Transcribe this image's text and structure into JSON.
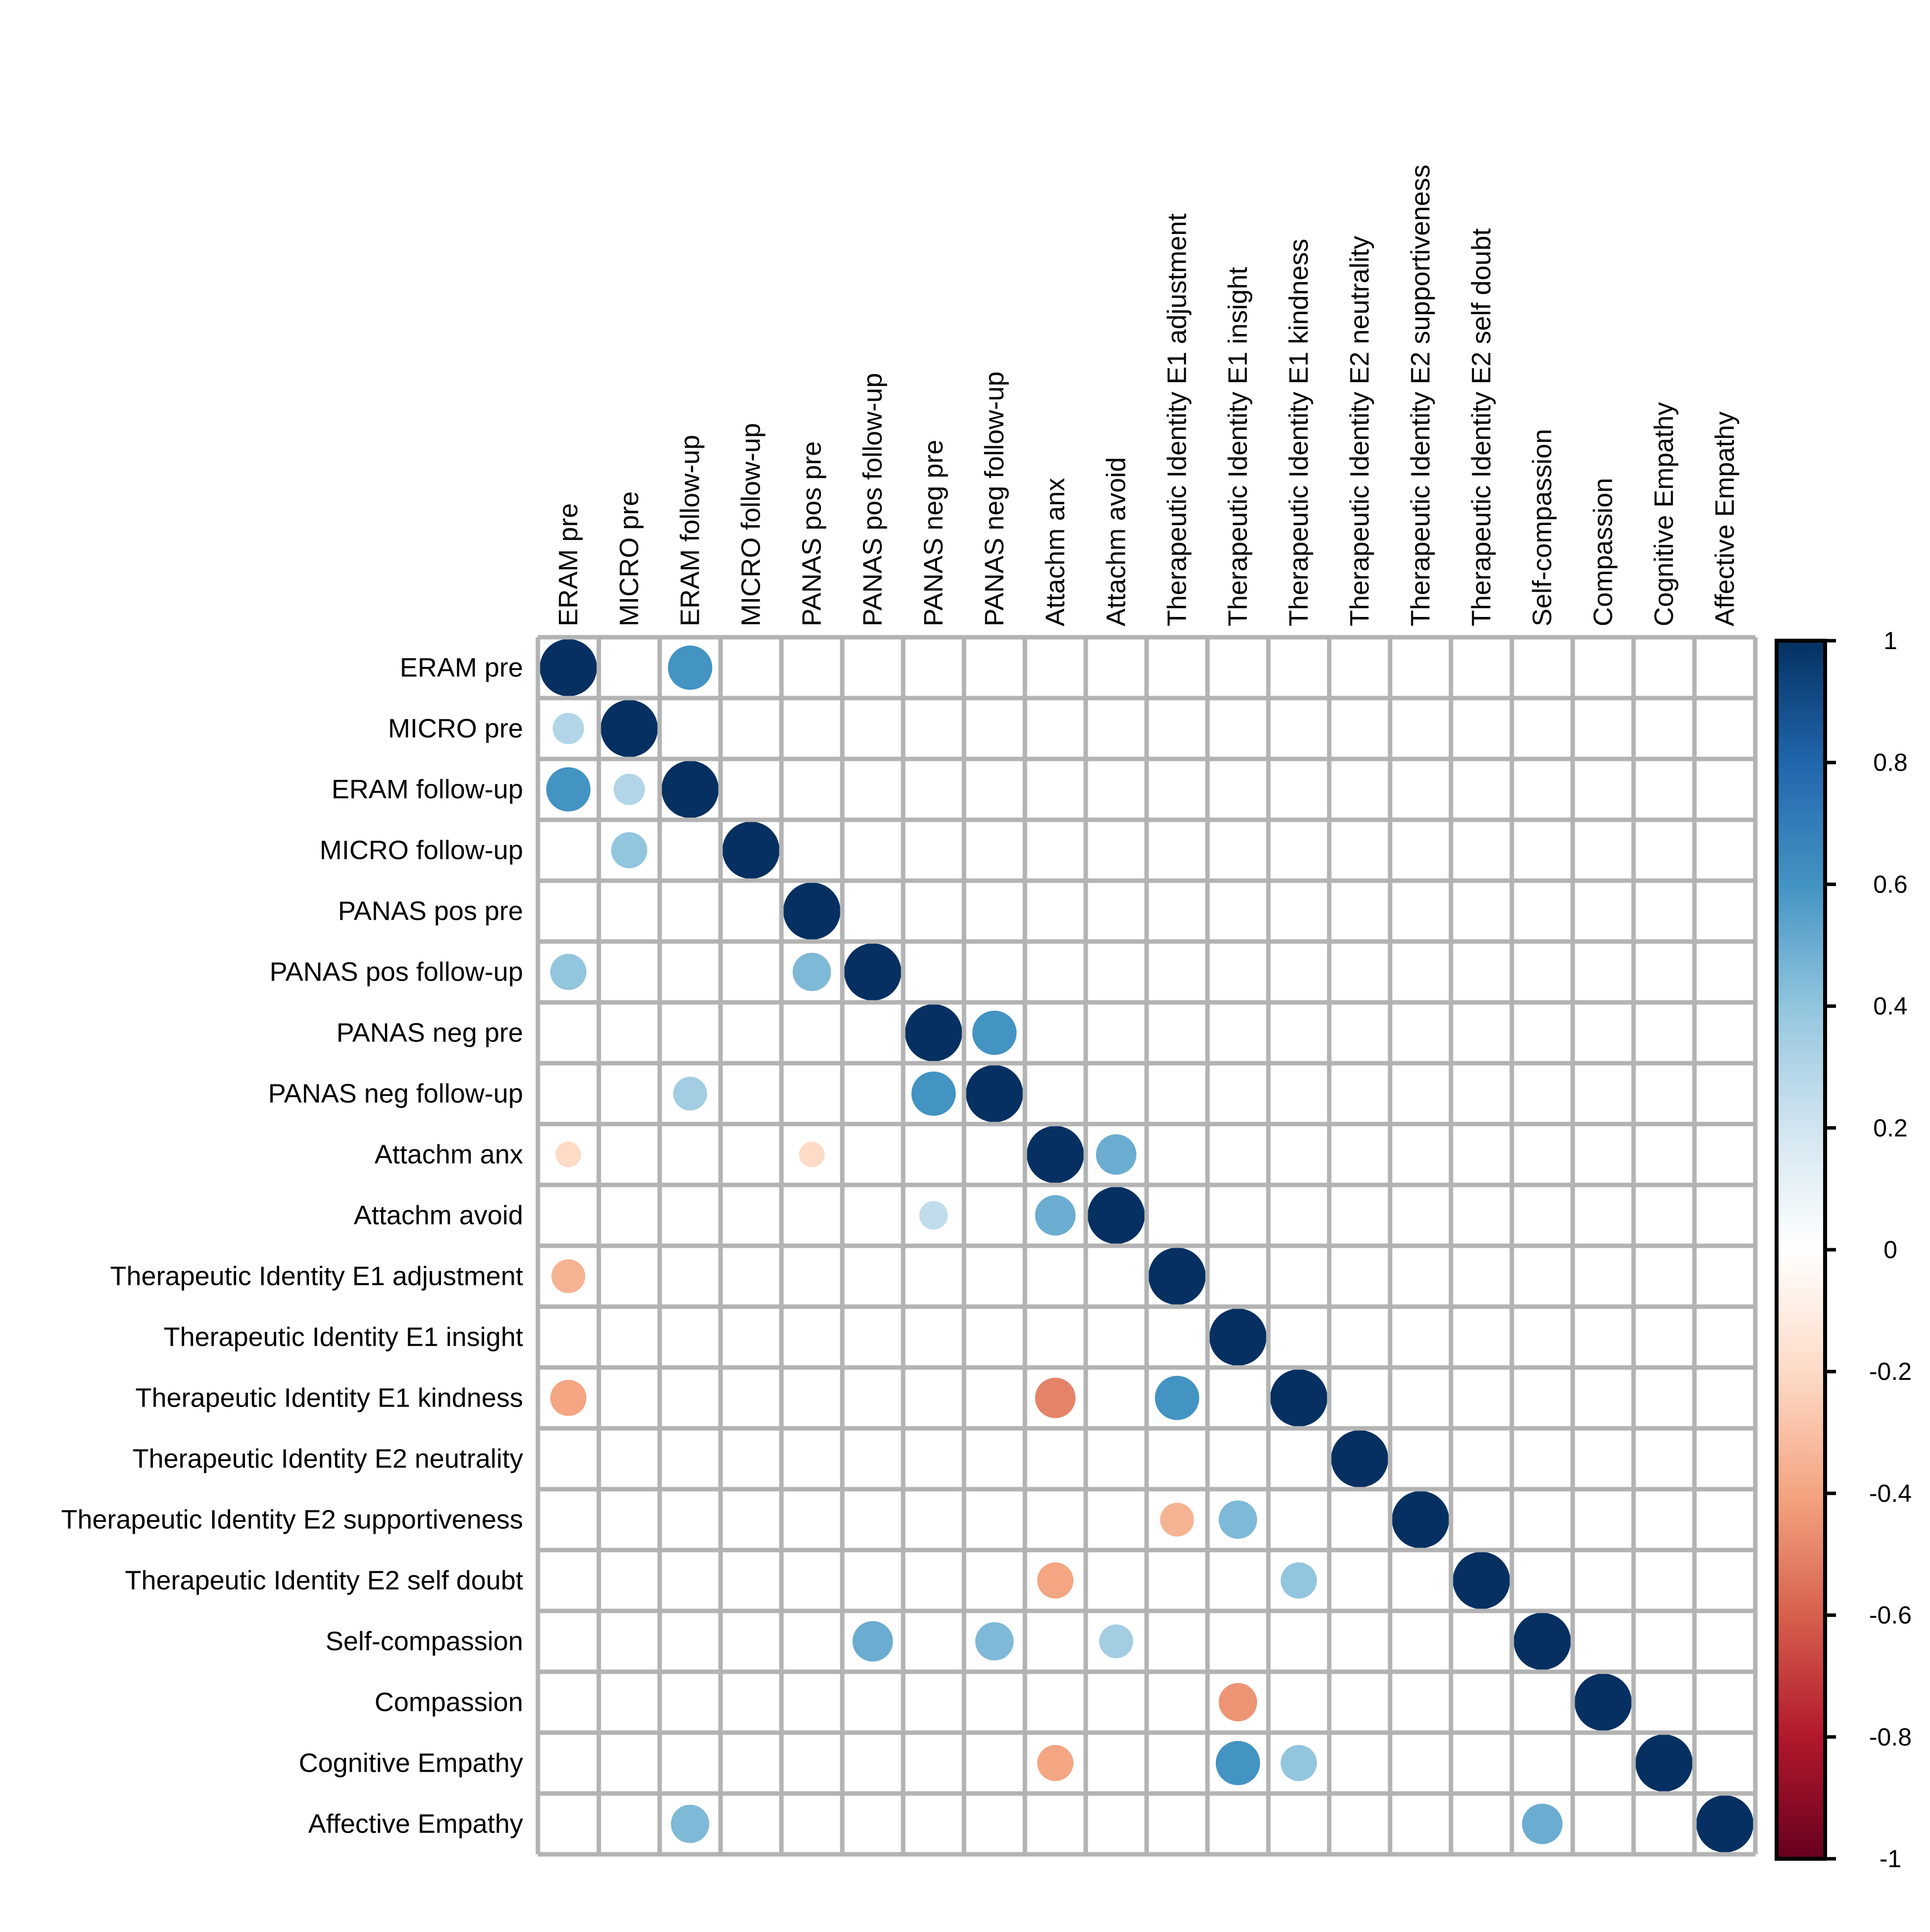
{
  "chart_data": {
    "type": "heatmap",
    "style": "corrplot-circle",
    "title": "",
    "variables": [
      "ERAM pre",
      "MICRO pre",
      "ERAM follow-up",
      "MICRO follow-up",
      "PANAS pos pre",
      "PANAS pos follow-up",
      "PANAS neg pre",
      "PANAS neg follow-up",
      "Attachm anx",
      "Attachm avoid",
      "Therapeutic Identity E1 adjustment",
      "Therapeutic Identity E1 insight",
      "Therapeutic Identity E1 kindness",
      "Therapeutic Identity E2 neutrality",
      "Therapeutic Identity E2 supportiveness",
      "Therapeutic Identity E2 self doubt",
      "Self-compassion",
      "Compassion",
      "Cognitive Empathy",
      "Affective Empathy"
    ],
    "correlations": [
      {
        "row": 0,
        "col": 0,
        "r": 1.0
      },
      {
        "row": 0,
        "col": 2,
        "r": 0.6
      },
      {
        "row": 1,
        "col": 0,
        "r": 0.3
      },
      {
        "row": 1,
        "col": 1,
        "r": 1.0
      },
      {
        "row": 2,
        "col": 0,
        "r": 0.6
      },
      {
        "row": 2,
        "col": 1,
        "r": 0.3
      },
      {
        "row": 2,
        "col": 2,
        "r": 1.0
      },
      {
        "row": 3,
        "col": 1,
        "r": 0.4
      },
      {
        "row": 3,
        "col": 3,
        "r": 1.0
      },
      {
        "row": 4,
        "col": 4,
        "r": 1.0
      },
      {
        "row": 5,
        "col": 0,
        "r": 0.4
      },
      {
        "row": 5,
        "col": 4,
        "r": 0.45
      },
      {
        "row": 5,
        "col": 5,
        "r": 1.0
      },
      {
        "row": 6,
        "col": 6,
        "r": 1.0
      },
      {
        "row": 6,
        "col": 7,
        "r": 0.6
      },
      {
        "row": 7,
        "col": 2,
        "r": 0.35
      },
      {
        "row": 7,
        "col": 6,
        "r": 0.6
      },
      {
        "row": 7,
        "col": 7,
        "r": 1.0
      },
      {
        "row": 8,
        "col": 0,
        "r": -0.2
      },
      {
        "row": 8,
        "col": 4,
        "r": -0.2
      },
      {
        "row": 8,
        "col": 8,
        "r": 1.0
      },
      {
        "row": 8,
        "col": 9,
        "r": 0.5
      },
      {
        "row": 9,
        "col": 6,
        "r": 0.25
      },
      {
        "row": 9,
        "col": 8,
        "r": 0.5
      },
      {
        "row": 9,
        "col": 9,
        "r": 1.0
      },
      {
        "row": 10,
        "col": 0,
        "r": -0.35
      },
      {
        "row": 10,
        "col": 10,
        "r": 1.0
      },
      {
        "row": 11,
        "col": 11,
        "r": 1.0
      },
      {
        "row": 12,
        "col": 0,
        "r": -0.4
      },
      {
        "row": 12,
        "col": 8,
        "r": -0.5
      },
      {
        "row": 12,
        "col": 10,
        "r": 0.6
      },
      {
        "row": 12,
        "col": 12,
        "r": 1.0
      },
      {
        "row": 13,
        "col": 13,
        "r": 1.0
      },
      {
        "row": 14,
        "col": 10,
        "r": -0.35
      },
      {
        "row": 14,
        "col": 11,
        "r": 0.45
      },
      {
        "row": 14,
        "col": 14,
        "r": 1.0
      },
      {
        "row": 15,
        "col": 8,
        "r": -0.4
      },
      {
        "row": 15,
        "col": 12,
        "r": 0.4
      },
      {
        "row": 15,
        "col": 15,
        "r": 1.0
      },
      {
        "row": 16,
        "col": 5,
        "r": 0.5
      },
      {
        "row": 16,
        "col": 7,
        "r": 0.45
      },
      {
        "row": 16,
        "col": 9,
        "r": 0.35
      },
      {
        "row": 16,
        "col": 16,
        "r": 1.0
      },
      {
        "row": 17,
        "col": 11,
        "r": -0.45
      },
      {
        "row": 17,
        "col": 17,
        "r": 1.0
      },
      {
        "row": 18,
        "col": 8,
        "r": -0.4
      },
      {
        "row": 18,
        "col": 11,
        "r": 0.6
      },
      {
        "row": 18,
        "col": 12,
        "r": 0.4
      },
      {
        "row": 18,
        "col": 18,
        "r": 1.0
      },
      {
        "row": 19,
        "col": 2,
        "r": 0.45
      },
      {
        "row": 19,
        "col": 16,
        "r": 0.5
      },
      {
        "row": 19,
        "col": 19,
        "r": 1.0
      }
    ],
    "colorbar": {
      "range": [
        -1,
        1
      ],
      "tick_labels": [
        "1",
        "0.8",
        "0.6",
        "0.4",
        "0.2",
        "0",
        "-0.2",
        "-0.4",
        "-0.6",
        "-0.8",
        "-1"
      ],
      "tick_values": [
        1,
        0.8,
        0.6,
        0.4,
        0.2,
        0,
        -0.2,
        -0.4,
        -0.6,
        -0.8,
        -1
      ],
      "palette": [
        "#67001F",
        "#B2182B",
        "#D6604D",
        "#F4A582",
        "#FDDBC7",
        "#FFFFFF",
        "#D1E5F0",
        "#92C5DE",
        "#4393C3",
        "#2166AC",
        "#053061"
      ],
      "placement": "right"
    },
    "grid": true,
    "grid_color": "#b3b3b3"
  }
}
